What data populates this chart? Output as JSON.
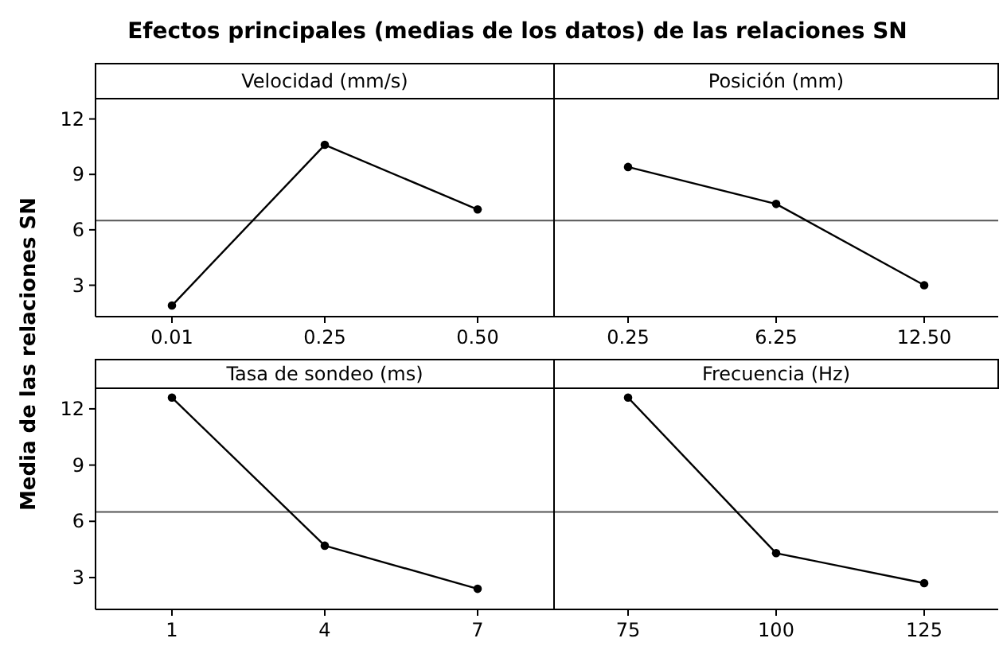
{
  "chart_data": [
    {
      "type": "line",
      "title": "Efectos principales (medias de los datos) de las relaciones SN",
      "ylabel": "Media de las relaciones SN",
      "xlabel": "Velocidad (mm/s)",
      "categories": [
        "0.01",
        "0.25",
        "0.50"
      ],
      "values": [
        1.9,
        10.6,
        7.1
      ],
      "color": "#000000",
      "marker": "circle",
      "ylim": [
        1.3,
        13.1
      ],
      "yticks": [
        3,
        6,
        9,
        12
      ],
      "ref_lines": [
        {
          "axis": "y",
          "value": 6.5
        }
      ]
    },
    {
      "type": "line",
      "xlabel": "Posición (mm)",
      "categories": [
        "0.25",
        "6.25",
        "12.50"
      ],
      "values": [
        9.4,
        7.4,
        3.0
      ],
      "color": "#000000",
      "marker": "circle",
      "ylim": [
        1.3,
        13.1
      ],
      "yticks": [
        3,
        6,
        9,
        12
      ],
      "tick_labels": "x",
      "ref_lines": [
        {
          "axis": "y",
          "value": 6.5
        }
      ]
    },
    {
      "type": "line",
      "xlabel": "Tasa de sondeo (ms)",
      "categories": [
        "1",
        "4",
        "7"
      ],
      "values": [
        12.6,
        4.7,
        2.4
      ],
      "color": "#000000",
      "marker": "circle",
      "ylim": [
        1.3,
        13.1
      ],
      "yticks": [
        3,
        6,
        9,
        12
      ],
      "ref_lines": [
        {
          "axis": "y",
          "value": 6.5
        }
      ]
    },
    {
      "type": "line",
      "xlabel": "Frecuencia (Hz)",
      "categories": [
        "75",
        "100",
        "125"
      ],
      "values": [
        12.6,
        4.3,
        2.7
      ],
      "color": "#000000",
      "marker": "circle",
      "ylim": [
        1.3,
        13.1
      ],
      "yticks": [
        3,
        6,
        9,
        12
      ],
      "tick_labels": "x",
      "ref_lines": [
        {
          "axis": "y",
          "value": 6.5
        }
      ]
    }
  ]
}
